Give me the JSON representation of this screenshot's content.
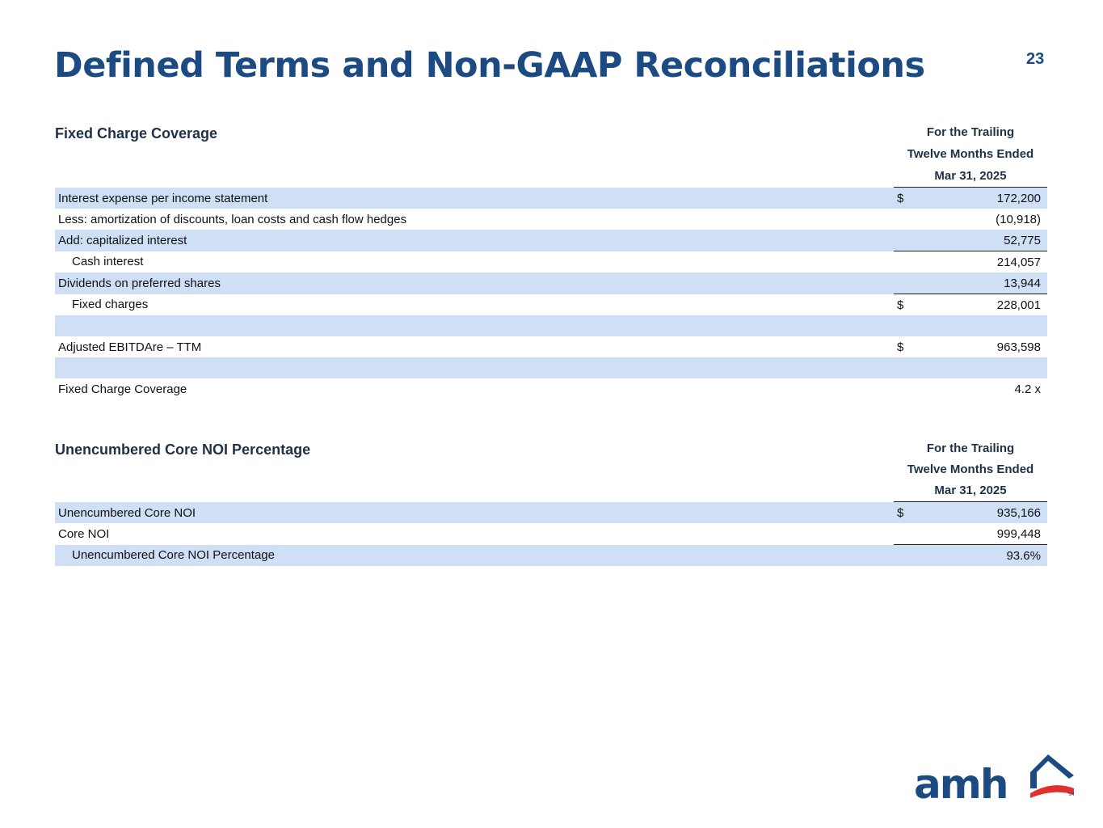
{
  "header": {
    "title": "Defined Terms and Non-GAAP Reconciliations",
    "page_number": "23"
  },
  "fixed_charge": {
    "title": "Fixed Charge Coverage",
    "column_header": [
      "For the Trailing",
      "Twelve Months Ended",
      "Mar 31, 2025"
    ],
    "rows": [
      {
        "label": "Interest expense per income statement",
        "currency": "$",
        "value": "172,200"
      },
      {
        "label": "Less: amortization of discounts, loan costs and cash flow hedges",
        "value": "(10,918)"
      },
      {
        "label": "Add: capitalized interest",
        "value": "52,775"
      },
      {
        "label": "Cash interest",
        "value": "214,057"
      },
      {
        "label": "Dividends on preferred shares",
        "value": "13,944"
      },
      {
        "label": "Fixed charges",
        "currency": "$",
        "value": "228,001"
      },
      {
        "label": "Adjusted EBITDAre – TTM",
        "currency": "$",
        "value": "963,598"
      },
      {
        "label": "Fixed Charge Coverage",
        "value": "4.2 x"
      }
    ]
  },
  "unencumbered": {
    "title": "Unencumbered Core NOI Percentage",
    "column_header": [
      "For the Trailing",
      "Twelve Months Ended",
      "Mar 31, 2025"
    ],
    "rows": [
      {
        "label": "Unencumbered Core NOI",
        "currency": "$",
        "value": "935,166"
      },
      {
        "label": "Core NOI",
        "value": "999,448"
      },
      {
        "label": "Unencumbered Core NOI Percentage",
        "value": "93.6%"
      }
    ]
  },
  "logo": {
    "text": "amh",
    "mark": "SM"
  }
}
